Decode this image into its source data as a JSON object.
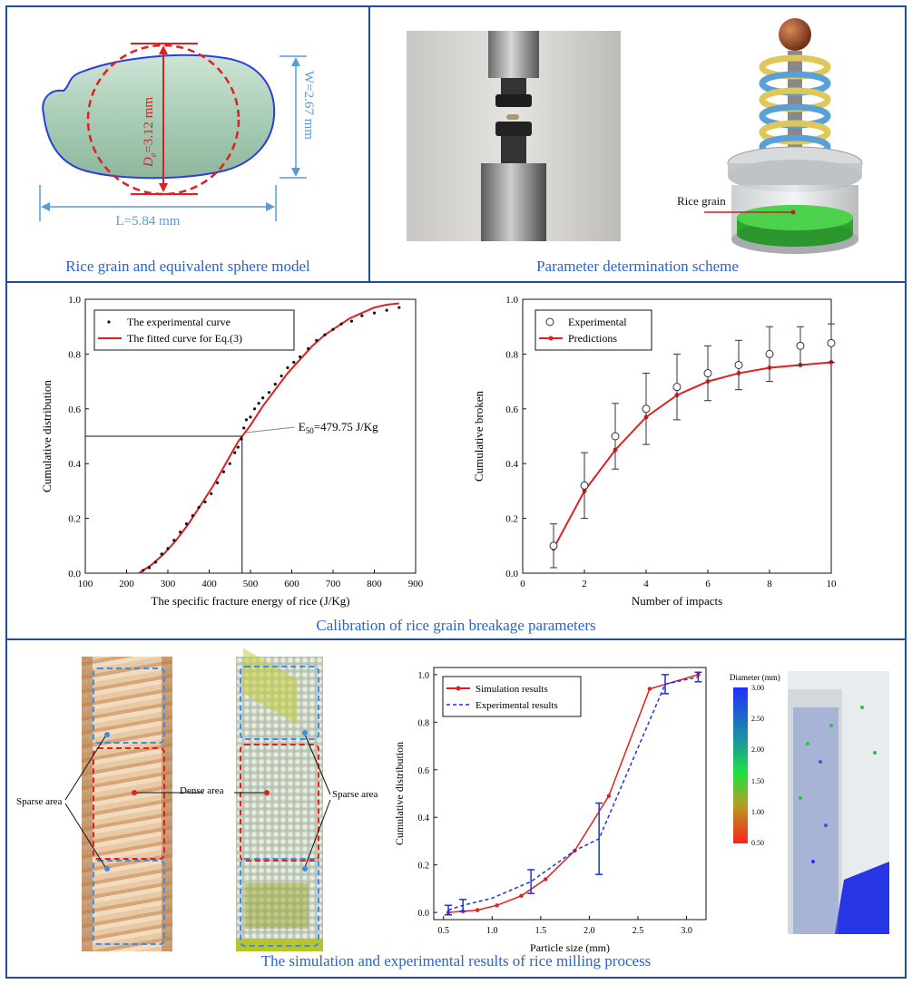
{
  "captions": {
    "rice_model": "Rice grain and equivalent sphere model",
    "scheme": "Parameter determination scheme",
    "calibration": "Calibration of rice grain breakage parameters",
    "milling": "The simulation and experimental results of rice milling process"
  },
  "rice_model": {
    "de_prefix": "D",
    "de_sub": "e",
    "de_value": "=3.12 mm",
    "width_label": "W=2.67 mm",
    "length_label": "L=5.84 mm"
  },
  "scheme": {
    "rice_grain_label": "Rice grain"
  },
  "milling_photos": {
    "sparse_left": "Sparse area",
    "dense": "Dense area",
    "sparse_right": "Sparse area"
  },
  "colorbar": {
    "title": "Diameter (mm)",
    "ticks": [
      "3.00",
      "2.50",
      "2.00",
      "1.50",
      "1.00",
      "0.50"
    ]
  },
  "chart_data": [
    {
      "type": "scatter",
      "xlabel": "The specific fracture energy of rice (J/Kg)",
      "ylabel": "Cumulative distribution",
      "xlim": [
        100,
        900
      ],
      "ylim": [
        0.0,
        1.0
      ],
      "xticks": [
        "100",
        "200",
        "300",
        "400",
        "500",
        "600",
        "700",
        "800",
        "900"
      ],
      "yticks": [
        "0.0",
        "0.2",
        "0.4",
        "0.6",
        "0.8",
        "1.0"
      ],
      "legend_position": "top-left",
      "legend": [
        "The experimental curve",
        "The fitted curve for Eq.(3)"
      ],
      "annotation": {
        "prefix": "E",
        "sub": "50",
        "text": "=479.75 J/Kg",
        "x": 479.75,
        "y": 0.5
      },
      "series": [
        {
          "name": "The experimental curve",
          "kind": "points",
          "x": [
            240,
            255,
            270,
            285,
            300,
            315,
            330,
            345,
            360,
            375,
            390,
            405,
            420,
            435,
            450,
            462,
            470,
            478,
            484,
            490,
            500,
            510,
            520,
            530,
            545,
            560,
            575,
            590,
            605,
            620,
            640,
            660,
            680,
            700,
            720,
            745,
            770,
            800,
            830,
            860
          ],
          "y": [
            0.01,
            0.02,
            0.04,
            0.07,
            0.09,
            0.12,
            0.15,
            0.18,
            0.21,
            0.24,
            0.26,
            0.29,
            0.33,
            0.37,
            0.4,
            0.44,
            0.46,
            0.49,
            0.53,
            0.56,
            0.57,
            0.6,
            0.62,
            0.64,
            0.66,
            0.69,
            0.72,
            0.75,
            0.77,
            0.79,
            0.82,
            0.85,
            0.87,
            0.89,
            0.91,
            0.92,
            0.94,
            0.95,
            0.96,
            0.97
          ]
        },
        {
          "name": "The fitted curve for Eq.(3)",
          "kind": "line",
          "x": [
            230,
            260,
            290,
            320,
            350,
            380,
            410,
            440,
            470,
            480,
            500,
            530,
            560,
            590,
            620,
            650,
            680,
            710,
            740,
            770,
            800,
            830,
            860
          ],
          "y": [
            0.0,
            0.03,
            0.07,
            0.12,
            0.18,
            0.25,
            0.32,
            0.4,
            0.48,
            0.5,
            0.54,
            0.61,
            0.67,
            0.73,
            0.78,
            0.83,
            0.87,
            0.9,
            0.93,
            0.95,
            0.97,
            0.98,
            0.985
          ]
        }
      ]
    },
    {
      "type": "line",
      "xlabel": "Number of impacts",
      "ylabel": "Cumulative broken",
      "xlim": [
        0,
        10
      ],
      "ylim": [
        0.0,
        1.0
      ],
      "xticks": [
        "0",
        "2",
        "4",
        "6",
        "8",
        "10"
      ],
      "yticks": [
        "0.0",
        "0.2",
        "0.4",
        "0.6",
        "0.8",
        "1.0"
      ],
      "legend_position": "top-left",
      "legend": [
        "Experimental",
        "Predictions"
      ],
      "series": [
        {
          "name": "Experimental",
          "kind": "points_err",
          "x": [
            1,
            2,
            3,
            4,
            5,
            6,
            7,
            8,
            9,
            10
          ],
          "y": [
            0.1,
            0.32,
            0.5,
            0.6,
            0.68,
            0.73,
            0.76,
            0.8,
            0.83,
            0.84
          ],
          "err": [
            0.08,
            0.12,
            0.12,
            0.13,
            0.12,
            0.1,
            0.09,
            0.1,
            0.07,
            0.07
          ]
        },
        {
          "name": "Predictions",
          "kind": "line_marker",
          "x": [
            1,
            2,
            3,
            4,
            5,
            6,
            7,
            8,
            9,
            10
          ],
          "y": [
            0.09,
            0.3,
            0.45,
            0.57,
            0.65,
            0.7,
            0.73,
            0.75,
            0.76,
            0.77
          ]
        }
      ]
    },
    {
      "type": "line",
      "xlabel": "Particle size (mm)",
      "ylabel": "Cumulative distribution",
      "xlim": [
        0.4,
        3.2
      ],
      "ylim": [
        -0.03,
        1.03
      ],
      "xticks": [
        "0.5",
        "1.0",
        "1.5",
        "2.0",
        "2.5",
        "3.0"
      ],
      "yticks": [
        "0.0",
        "0.2",
        "0.4",
        "0.6",
        "0.8",
        "1.0"
      ],
      "legend_position": "top-left",
      "legend": [
        "Simulation results",
        "Experimental results"
      ],
      "series": [
        {
          "name": "Simulation results",
          "kind": "line_marker",
          "x": [
            0.55,
            0.7,
            0.85,
            1.05,
            1.3,
            1.55,
            1.85,
            2.2,
            2.62,
            3.12
          ],
          "y": [
            0.0,
            0.005,
            0.01,
            0.03,
            0.07,
            0.14,
            0.26,
            0.49,
            0.94,
            1.0
          ]
        },
        {
          "name": "Experimental results",
          "kind": "dashed_err",
          "x": [
            0.55,
            0.7,
            1.0,
            1.4,
            1.85,
            2.1,
            2.78,
            3.12
          ],
          "y": [
            0.01,
            0.03,
            0.06,
            0.13,
            0.26,
            0.31,
            0.96,
            0.99
          ],
          "err": [
            0.02,
            0.025,
            0.0,
            0.05,
            0.0,
            0.15,
            0.04,
            0.02
          ]
        }
      ]
    }
  ]
}
